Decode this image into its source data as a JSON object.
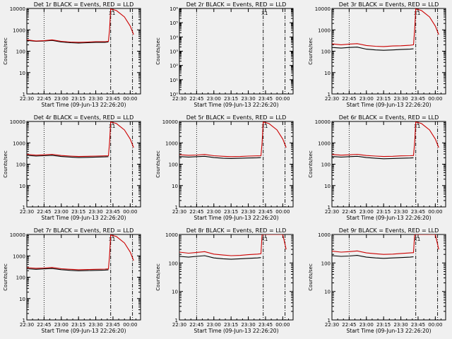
{
  "chart_data": [
    {
      "type": "line",
      "title": "Det 1r BLACK = Events, RED = LLD",
      "xlabel": "Start Time (09-Jun-13 22:26:20)",
      "ylabel": "Counts/sec",
      "yscale": "log",
      "ylim": [
        1,
        10000
      ],
      "ytick_labels": [
        "1",
        "10",
        "100",
        "1000",
        "10000"
      ],
      "xtick_labels": [
        "22:30",
        "22:45",
        "23:00",
        "23:15",
        "23:30",
        "23:45",
        "00:00"
      ],
      "vlines": [
        {
          "at": "22:45",
          "style": "dotted"
        },
        {
          "at": "23:43",
          "style": "dashdot"
        },
        {
          "at": "00:02",
          "style": "dashdot"
        }
      ],
      "marker_label": "X1",
      "series": [
        {
          "color": "#000000",
          "x": [
            "22:30",
            "22:38",
            "22:45",
            "22:52",
            "23:00",
            "23:08",
            "23:15",
            "23:23",
            "23:30",
            "23:38",
            "23:41"
          ],
          "y": [
            320,
            290,
            300,
            320,
            270,
            250,
            240,
            250,
            260,
            260,
            270
          ]
        },
        {
          "color": "#cc0000",
          "x": [
            "22:30",
            "22:38",
            "22:45",
            "22:52",
            "23:00",
            "23:08",
            "23:15",
            "23:23",
            "23:30",
            "23:38",
            "23:41",
            "23:42",
            "23:43",
            "23:48",
            "23:55",
            "00:00",
            "00:03"
          ],
          "y": [
            340,
            300,
            310,
            340,
            290,
            270,
            260,
            270,
            280,
            280,
            290,
            1000,
            9500,
            8000,
            4000,
            1500,
            600
          ]
        }
      ]
    },
    {
      "type": "line",
      "title": "Det 2r BLACK = Events, RED = LLD",
      "xlabel": "Start Time (09-Jun-13 22:26:20)",
      "ylabel": "Counts/sec",
      "yscale": "log",
      "ylim": [
        1,
        1000000
      ],
      "ytick_labels": [
        "10⁰",
        "10¹",
        "10²",
        "10³",
        "10⁴",
        "10⁵",
        "10⁶"
      ],
      "xtick_labels": [
        "22:30",
        "22:45",
        "23:00",
        "23:15",
        "23:30",
        "23:45",
        "00:00"
      ],
      "vlines": [
        {
          "at": "22:45",
          "style": "dotted"
        },
        {
          "at": "23:43",
          "style": "dashdot"
        },
        {
          "at": "00:02",
          "style": "dashdot"
        }
      ],
      "marker_label": "X1",
      "series": []
    },
    {
      "type": "line",
      "title": "Det 3r BLACK = Events, RED = LLD",
      "xlabel": "Start Time (09-Jun-13 22:26:20)",
      "ylabel": "Counts/sec",
      "yscale": "log",
      "ylim": [
        1,
        10000
      ],
      "ytick_labels": [
        "1",
        "10",
        "100",
        "1000",
        "10000"
      ],
      "xtick_labels": [
        "22:30",
        "22:45",
        "23:00",
        "23:15",
        "23:30",
        "23:45",
        "00:00"
      ],
      "vlines": [
        {
          "at": "22:45",
          "style": "dotted"
        },
        {
          "at": "23:43",
          "style": "dashdot"
        },
        {
          "at": "00:02",
          "style": "dashdot"
        }
      ],
      "marker_label": "X1",
      "series": [
        {
          "color": "#000000",
          "x": [
            "22:30",
            "22:38",
            "22:45",
            "22:52",
            "23:00",
            "23:08",
            "23:15",
            "23:23",
            "23:30",
            "23:38",
            "23:41"
          ],
          "y": [
            150,
            140,
            150,
            155,
            125,
            115,
            110,
            115,
            120,
            125,
            130
          ]
        },
        {
          "color": "#cc0000",
          "x": [
            "22:30",
            "22:38",
            "22:45",
            "22:52",
            "23:00",
            "23:08",
            "23:15",
            "23:23",
            "23:30",
            "23:38",
            "23:41",
            "23:42",
            "23:43",
            "23:48",
            "23:55",
            "00:00",
            "00:03"
          ],
          "y": [
            220,
            200,
            215,
            225,
            185,
            170,
            165,
            175,
            180,
            190,
            200,
            1000,
            9500,
            8000,
            4000,
            1500,
            600
          ]
        }
      ]
    },
    {
      "type": "line",
      "title": "Det 4r BLACK = Events, RED = LLD",
      "xlabel": "Start Time (09-Jun-13 22:26:20)",
      "ylabel": "Counts/sec",
      "yscale": "log",
      "ylim": [
        1,
        10000
      ],
      "ytick_labels": [
        "1",
        "10",
        "100",
        "1000",
        "10000"
      ],
      "xtick_labels": [
        "22:30",
        "22:45",
        "23:00",
        "23:15",
        "23:30",
        "23:45",
        "00:00"
      ],
      "vlines": [
        {
          "at": "22:45",
          "style": "dotted"
        },
        {
          "at": "23:43",
          "style": "dashdot"
        },
        {
          "at": "00:02",
          "style": "dashdot"
        }
      ],
      "marker_label": "X1",
      "series": [
        {
          "color": "#000000",
          "x": [
            "22:30",
            "22:38",
            "22:45",
            "22:52",
            "23:00",
            "23:08",
            "23:15",
            "23:23",
            "23:30",
            "23:38",
            "23:41"
          ],
          "y": [
            260,
            240,
            250,
            260,
            230,
            215,
            205,
            210,
            215,
            220,
            225
          ]
        },
        {
          "color": "#cc0000",
          "x": [
            "22:30",
            "22:38",
            "22:45",
            "22:52",
            "23:00",
            "23:08",
            "23:15",
            "23:23",
            "23:30",
            "23:38",
            "23:41",
            "23:42",
            "23:43",
            "23:48",
            "23:55",
            "00:00",
            "00:03"
          ],
          "y": [
            290,
            265,
            275,
            290,
            255,
            240,
            230,
            235,
            240,
            245,
            250,
            1000,
            9500,
            8000,
            4000,
            1500,
            600
          ]
        }
      ]
    },
    {
      "type": "line",
      "title": "Det 5r BLACK = Events, RED = LLD",
      "xlabel": "Start Time (09-Jun-13 22:26:20)",
      "ylabel": "Counts/sec",
      "yscale": "log",
      "ylim": [
        1,
        10000
      ],
      "ytick_labels": [
        "1",
        "10",
        "100",
        "1000",
        "10000"
      ],
      "xtick_labels": [
        "22:30",
        "22:45",
        "23:00",
        "23:15",
        "23:30",
        "23:45",
        "00:00"
      ],
      "vlines": [
        {
          "at": "22:45",
          "style": "dotted"
        },
        {
          "at": "23:43",
          "style": "dashdot"
        },
        {
          "at": "00:02",
          "style": "dashdot"
        }
      ],
      "marker_label": "X1",
      "series": [
        {
          "color": "#000000",
          "x": [
            "22:30",
            "22:38",
            "22:45",
            "22:52",
            "23:00",
            "23:08",
            "23:15",
            "23:23",
            "23:30",
            "23:38",
            "23:41"
          ],
          "y": [
            230,
            215,
            225,
            235,
            205,
            190,
            185,
            190,
            195,
            200,
            205
          ]
        },
        {
          "color": "#cc0000",
          "x": [
            "22:30",
            "22:38",
            "22:45",
            "22:52",
            "23:00",
            "23:08",
            "23:15",
            "23:23",
            "23:30",
            "23:38",
            "23:41",
            "23:42",
            "23:43",
            "23:48",
            "23:55",
            "00:00",
            "00:03"
          ],
          "y": [
            280,
            260,
            270,
            285,
            250,
            235,
            225,
            230,
            240,
            245,
            250,
            1000,
            9500,
            8000,
            4000,
            1500,
            600
          ]
        }
      ]
    },
    {
      "type": "line",
      "title": "Det 6r BLACK = Events, RED = LLD",
      "xlabel": "Start Time (09-Jun-13 22:26:20)",
      "ylabel": "Counts/sec",
      "yscale": "log",
      "ylim": [
        1,
        10000
      ],
      "ytick_labels": [
        "1",
        "10",
        "100",
        "1000",
        "10000"
      ],
      "xtick_labels": [
        "22:30",
        "22:45",
        "23:00",
        "23:15",
        "23:30",
        "23:45",
        "00:00"
      ],
      "vlines": [
        {
          "at": "22:45",
          "style": "dotted"
        },
        {
          "at": "23:43",
          "style": "dashdot"
        },
        {
          "at": "00:02",
          "style": "dashdot"
        }
      ],
      "marker_label": "X1",
      "series": [
        {
          "color": "#000000",
          "x": [
            "22:30",
            "22:38",
            "22:45",
            "22:52",
            "23:00",
            "23:08",
            "23:15",
            "23:23",
            "23:30",
            "23:38",
            "23:41"
          ],
          "y": [
            230,
            215,
            225,
            235,
            205,
            190,
            180,
            185,
            190,
            195,
            200
          ]
        },
        {
          "color": "#cc0000",
          "x": [
            "22:30",
            "22:38",
            "22:45",
            "22:52",
            "23:00",
            "23:08",
            "23:15",
            "23:23",
            "23:30",
            "23:38",
            "23:41",
            "23:42",
            "23:43",
            "23:48",
            "23:55",
            "00:00",
            "00:03"
          ],
          "y": [
            285,
            265,
            275,
            290,
            255,
            240,
            230,
            235,
            245,
            250,
            255,
            1000,
            9500,
            8000,
            4000,
            1500,
            600
          ]
        }
      ]
    },
    {
      "type": "line",
      "title": "Det 7r BLACK = Events, RED = LLD",
      "xlabel": "Start Time (09-Jun-13 22:26:20)",
      "ylabel": "Counts/sec",
      "yscale": "log",
      "ylim": [
        1,
        10000
      ],
      "ytick_labels": [
        "1",
        "10",
        "100",
        "1000",
        "10000"
      ],
      "xtick_labels": [
        "22:30",
        "22:45",
        "23:00",
        "23:15",
        "23:30",
        "23:45",
        "00:00"
      ],
      "vlines": [
        {
          "at": "22:45",
          "style": "dotted"
        },
        {
          "at": "23:43",
          "style": "dashdot"
        },
        {
          "at": "00:02",
          "style": "dashdot"
        }
      ],
      "marker_label": "X1",
      "series": [
        {
          "color": "#000000",
          "x": [
            "22:30",
            "22:38",
            "22:45",
            "22:52",
            "23:00",
            "23:08",
            "23:15",
            "23:23",
            "23:30",
            "23:38",
            "23:41"
          ],
          "y": [
            250,
            235,
            245,
            255,
            225,
            210,
            200,
            205,
            210,
            215,
            220
          ]
        },
        {
          "color": "#cc0000",
          "x": [
            "22:30",
            "22:38",
            "22:45",
            "22:52",
            "23:00",
            "23:08",
            "23:15",
            "23:23",
            "23:30",
            "23:38",
            "23:41",
            "23:42",
            "23:43",
            "23:48",
            "23:55",
            "00:00",
            "00:03"
          ],
          "y": [
            280,
            260,
            270,
            285,
            250,
            235,
            225,
            230,
            235,
            240,
            245,
            1000,
            9500,
            8000,
            4000,
            1500,
            600
          ]
        }
      ]
    },
    {
      "type": "line",
      "title": "Det 8r BLACK = Events, RED = LLD",
      "xlabel": "Start Time (09-Jun-13 22:26:20)",
      "ylabel": "Counts/sec",
      "yscale": "log",
      "ylim": [
        1,
        1000
      ],
      "ytick_labels": [
        "1",
        "10",
        "100",
        "1000"
      ],
      "xtick_labels": [
        "22:30",
        "22:45",
        "23:00",
        "23:15",
        "23:30",
        "23:45",
        "00:00"
      ],
      "vlines": [
        {
          "at": "22:45",
          "style": "dotted"
        },
        {
          "at": "23:43",
          "style": "dashdot"
        },
        {
          "at": "00:02",
          "style": "dashdot"
        }
      ],
      "marker_label": "X1",
      "series": [
        {
          "color": "#000000",
          "x": [
            "22:30",
            "22:38",
            "22:45",
            "22:52",
            "23:00",
            "23:08",
            "23:15",
            "23:23",
            "23:30",
            "23:38",
            "23:41"
          ],
          "y": [
            170,
            160,
            170,
            180,
            150,
            140,
            135,
            140,
            145,
            150,
            155
          ]
        },
        {
          "color": "#cc0000",
          "x": [
            "22:30",
            "22:38",
            "22:45",
            "22:52",
            "23:00",
            "23:08",
            "23:15",
            "23:23",
            "23:30",
            "23:38",
            "23:41",
            "23:42",
            "23:43",
            "23:48",
            "23:55",
            "00:00",
            "00:03"
          ],
          "y": [
            240,
            220,
            235,
            250,
            205,
            190,
            180,
            185,
            195,
            205,
            210,
            1000,
            1000,
            1000,
            1000,
            1000,
            300
          ]
        }
      ]
    },
    {
      "type": "line",
      "title": "Det 9r BLACK = Events, RED = LLD",
      "xlabel": "Start Time (09-Jun-13 22:26:20)",
      "ylabel": "Counts/sec",
      "yscale": "log",
      "ylim": [
        1,
        1000
      ],
      "ytick_labels": [
        "1",
        "10",
        "100",
        "1000"
      ],
      "xtick_labels": [
        "22:30",
        "22:45",
        "23:00",
        "23:15",
        "23:30",
        "23:45",
        "00:00"
      ],
      "vlines": [
        {
          "at": "22:45",
          "style": "dotted"
        },
        {
          "at": "23:43",
          "style": "dashdot"
        },
        {
          "at": "00:02",
          "style": "dashdot"
        }
      ],
      "marker_label": "X1",
      "series": [
        {
          "color": "#000000",
          "x": [
            "22:30",
            "22:38",
            "22:45",
            "22:52",
            "23:00",
            "23:08",
            "23:15",
            "23:23",
            "23:30",
            "23:38",
            "23:41"
          ],
          "y": [
            180,
            170,
            175,
            185,
            160,
            150,
            145,
            150,
            155,
            160,
            165
          ]
        },
        {
          "color": "#cc0000",
          "x": [
            "22:30",
            "22:38",
            "22:45",
            "22:52",
            "23:00",
            "23:08",
            "23:15",
            "23:23",
            "23:30",
            "23:38",
            "23:41",
            "23:42",
            "23:43",
            "23:48",
            "23:55",
            "00:00",
            "00:03"
          ],
          "y": [
            260,
            240,
            250,
            265,
            225,
            210,
            200,
            205,
            215,
            225,
            230,
            1000,
            1000,
            1000,
            1000,
            1000,
            300
          ]
        }
      ]
    }
  ]
}
